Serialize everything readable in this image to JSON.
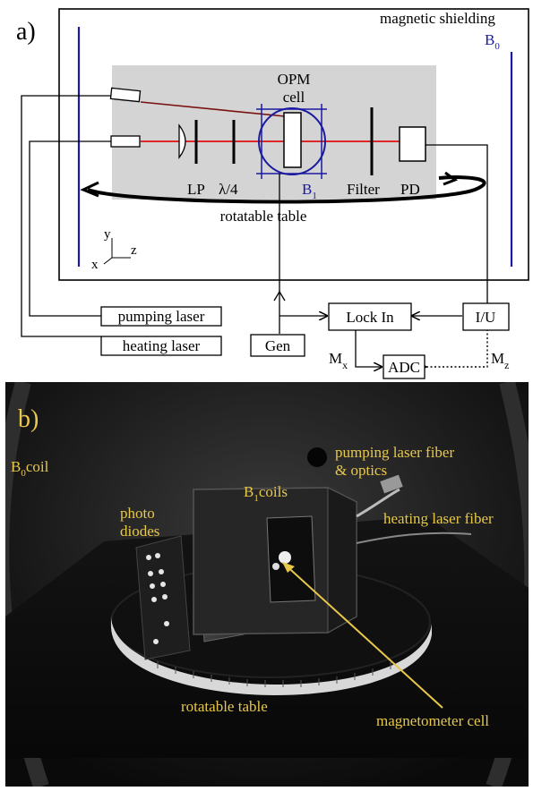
{
  "panel_a": {
    "label": "a)",
    "shield_label": "magnetic shielding",
    "b0_label": "B",
    "b0_sub": "0",
    "opm_line1": "OPM",
    "opm_line2": "cell",
    "b1_label": "B",
    "b1_sub": "1",
    "lp": "LP",
    "qwp": "λ/4",
    "filter": "Filter",
    "pd": "PD",
    "table": "rotatable table",
    "axis_y": "y",
    "axis_z": "z",
    "axis_x": "x",
    "pumping_laser": "pumping laser",
    "heating_laser": "heating laser",
    "gen": "Gen",
    "lockin": "Lock In",
    "iu": "I/U",
    "adc": "ADC",
    "mx": "M",
    "mx_sub": "x",
    "mz": "M",
    "mz_sub": "z"
  },
  "panel_b": {
    "label": "b)",
    "b0coil": "B",
    "b0coil_sub": "0",
    "b0coil_rest": "coil",
    "b1coils": "B",
    "b1coils_sub": "1",
    "b1coils_rest": "coils",
    "photo_line1": "photo",
    "photo_line2": "diodes",
    "pump_line1": "pumping laser fiber",
    "pump_line2": "& optics",
    "heating": "heating laser fiber",
    "table": "rotatable table",
    "cell": "magnetometer cell"
  },
  "colors": {
    "beam": "#e01010",
    "pump_fiber": "#7a1010",
    "coil": "#1a1aa0",
    "label_yellow": "#e8c84a",
    "shield_box": "#d4d4d4"
  }
}
